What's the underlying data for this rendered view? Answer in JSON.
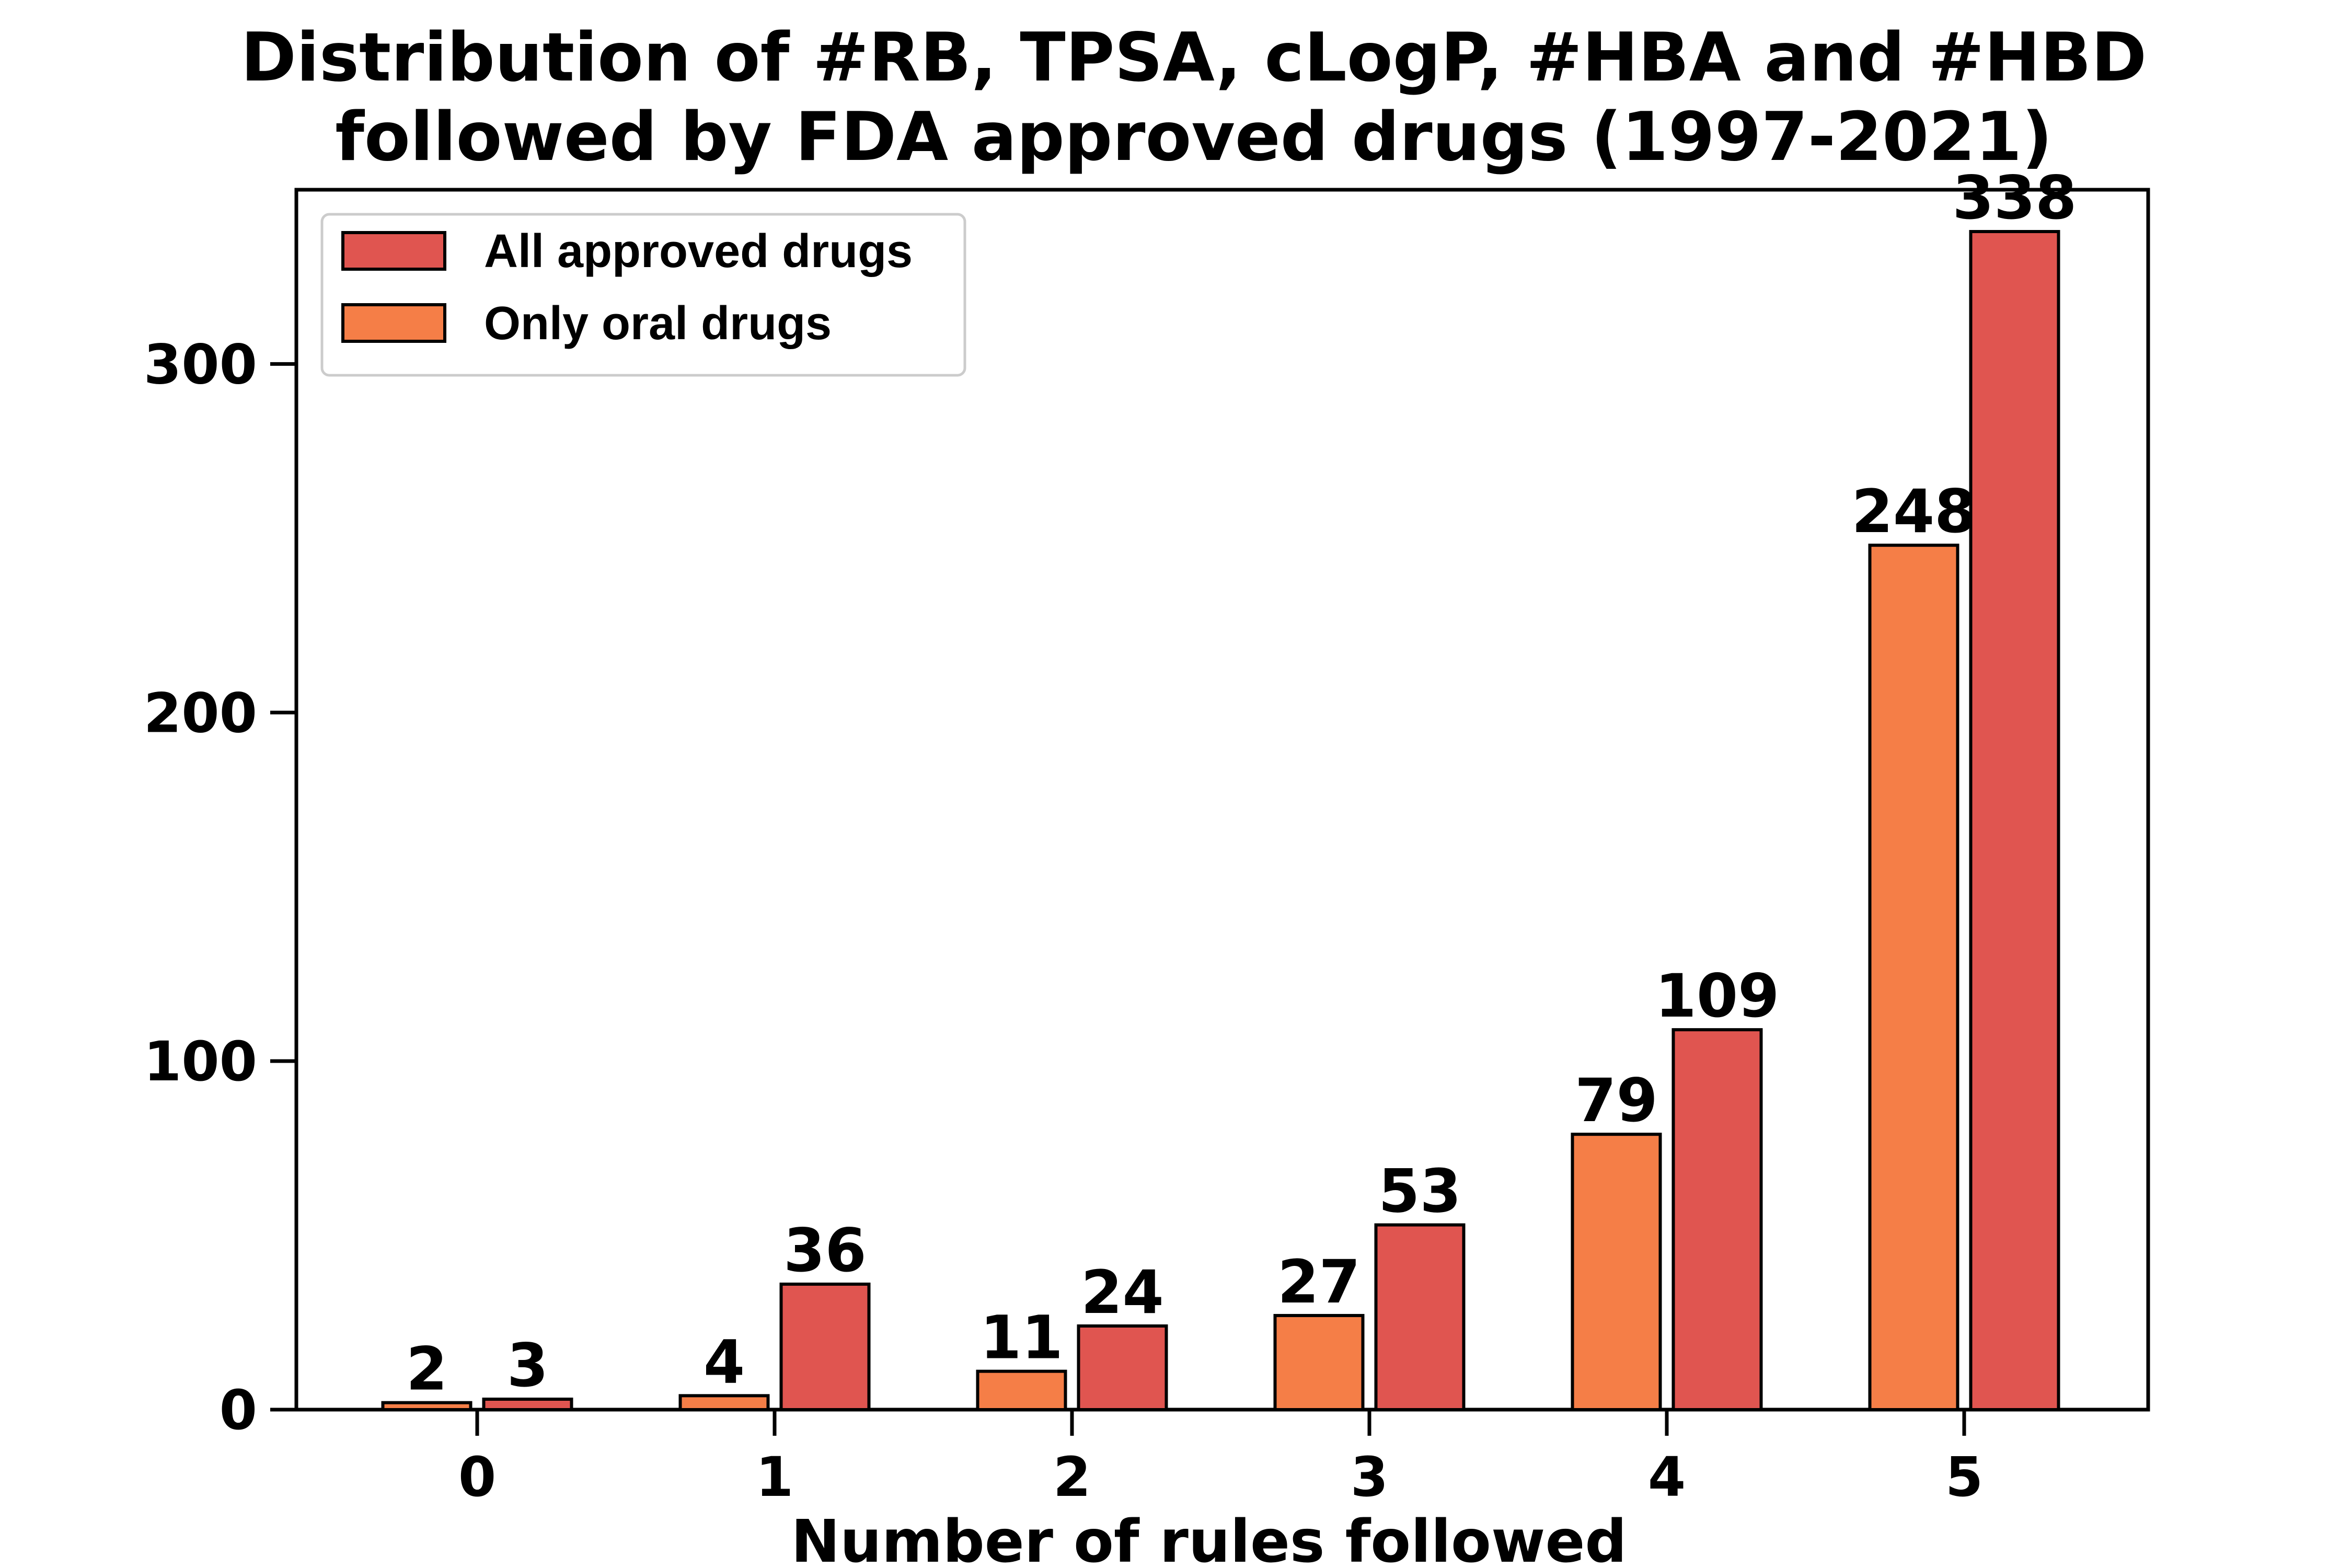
{
  "chart_data": {
    "type": "bar",
    "title": [
      "Distribution of #RB, TPSA, cLogP, #HBA and #HBD",
      "followed by FDA approved drugs (1997-2021)"
    ],
    "xlabel": "Number of rules followed",
    "ylabel": "",
    "categories": [
      "0",
      "1",
      "2",
      "3",
      "4",
      "5"
    ],
    "yticks": [
      0,
      100,
      200,
      300
    ],
    "ylim": [
      0,
      350
    ],
    "grid": false,
    "legend_position": "upper-left",
    "series": [
      {
        "name": "Only oral drugs",
        "color": "#F57E47",
        "values": [
          2,
          4,
          11,
          27,
          79,
          248
        ]
      },
      {
        "name": "All approved drugs",
        "color": "#E05550",
        "values": [
          3,
          36,
          24,
          53,
          109,
          338
        ]
      }
    ],
    "legend_order": [
      1,
      0
    ]
  }
}
